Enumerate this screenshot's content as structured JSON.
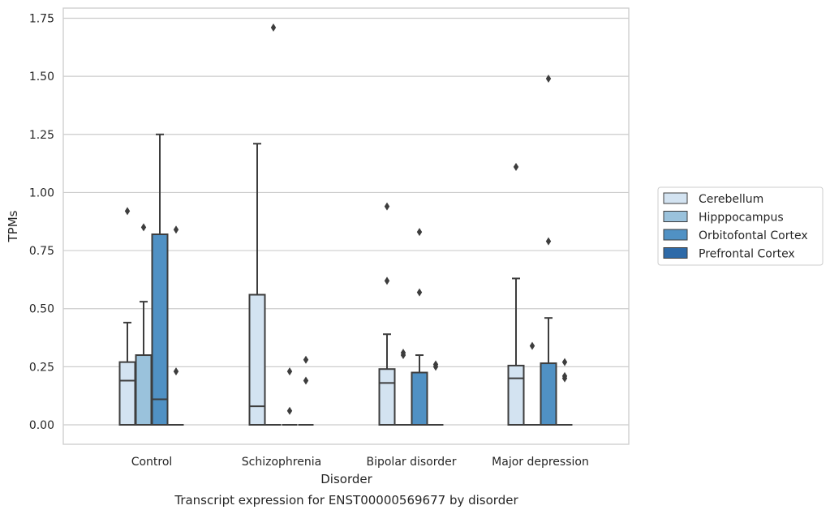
{
  "chart_data": {
    "type": "boxplot",
    "title": "",
    "caption": "Transcript expression for ENST00000569677 by disorder",
    "xlabel": "Disorder",
    "ylabel": "TPMs",
    "ylim": [
      -0.08,
      1.8
    ],
    "yticks": [
      "0.00",
      "0.25",
      "0.50",
      "0.75",
      "1.00",
      "1.25",
      "1.50",
      "1.75"
    ],
    "ytick_values": [
      0,
      0.25,
      0.5,
      0.75,
      1.0,
      1.25,
      1.5,
      1.75
    ],
    "grid": "horizontal",
    "legend_position": "right",
    "categories": [
      "Control",
      "Schizophrenia",
      "Bipolar disorder",
      "Major depression"
    ],
    "series": [
      {
        "name": "Cerebellum",
        "color": "#d3e3f1"
      },
      {
        "name": "Hipppocampus",
        "color": "#9ac2dc"
      },
      {
        "name": "Orbitofontal Cortex",
        "color": "#5091c4"
      },
      {
        "name": "Prefrontal Cortex",
        "color": "#2e6aa8"
      }
    ],
    "boxes": [
      [
        {
          "q1": 0,
          "median": 0.19,
          "q3": 0.27,
          "whisker_low": 0,
          "whisker_high": 0.44,
          "outliers": [
            0.92
          ]
        },
        {
          "q1": 0,
          "median": 0.0,
          "q3": 0.3,
          "whisker_low": 0,
          "whisker_high": 0.53,
          "outliers": [
            0.85
          ]
        },
        {
          "q1": 0,
          "median": 0.11,
          "q3": 0.82,
          "whisker_low": 0,
          "whisker_high": 1.25,
          "outliers": []
        },
        {
          "q1": 0,
          "median": 0,
          "q3": 0,
          "whisker_low": 0,
          "whisker_high": 0,
          "outliers": [
            0.84,
            0.23
          ]
        }
      ],
      [
        {
          "q1": 0,
          "median": 0.08,
          "q3": 0.56,
          "whisker_low": 0,
          "whisker_high": 1.21,
          "outliers": []
        },
        {
          "q1": 0,
          "median": 0,
          "q3": 0,
          "whisker_low": 0,
          "whisker_high": 0,
          "outliers": [
            1.71
          ]
        },
        {
          "q1": 0,
          "median": 0,
          "q3": 0,
          "whisker_low": 0,
          "whisker_high": 0,
          "outliers": [
            0.23,
            0.06
          ]
        },
        {
          "q1": 0,
          "median": 0,
          "q3": 0,
          "whisker_low": 0,
          "whisker_high": 0,
          "outliers": [
            0.28,
            0.19
          ]
        }
      ],
      [
        {
          "q1": 0,
          "median": 0.18,
          "q3": 0.24,
          "whisker_low": 0,
          "whisker_high": 0.39,
          "outliers": [
            0.94,
            0.62
          ]
        },
        {
          "q1": 0,
          "median": 0,
          "q3": 0,
          "whisker_low": 0,
          "whisker_high": 0,
          "outliers": [
            0.31,
            0.3
          ]
        },
        {
          "q1": 0,
          "median": 0.0,
          "q3": 0.225,
          "whisker_low": 0,
          "whisker_high": 0.3,
          "outliers": [
            0.83,
            0.57
          ]
        },
        {
          "q1": 0,
          "median": 0,
          "q3": 0,
          "whisker_low": 0,
          "whisker_high": 0,
          "outliers": [
            0.26,
            0.25
          ]
        }
      ],
      [
        {
          "q1": 0,
          "median": 0.2,
          "q3": 0.255,
          "whisker_low": 0,
          "whisker_high": 0.63,
          "outliers": [
            1.11
          ]
        },
        {
          "q1": 0,
          "median": 0,
          "q3": 0,
          "whisker_low": 0,
          "whisker_high": 0,
          "outliers": [
            0.34
          ]
        },
        {
          "q1": 0,
          "median": 0.0,
          "q3": 0.265,
          "whisker_low": 0,
          "whisker_high": 0.46,
          "outliers": [
            1.49,
            0.79
          ]
        },
        {
          "q1": 0,
          "median": 0,
          "q3": 0,
          "whisker_low": 0,
          "whisker_high": 0,
          "outliers": [
            0.27,
            0.21,
            0.2
          ]
        }
      ]
    ]
  }
}
